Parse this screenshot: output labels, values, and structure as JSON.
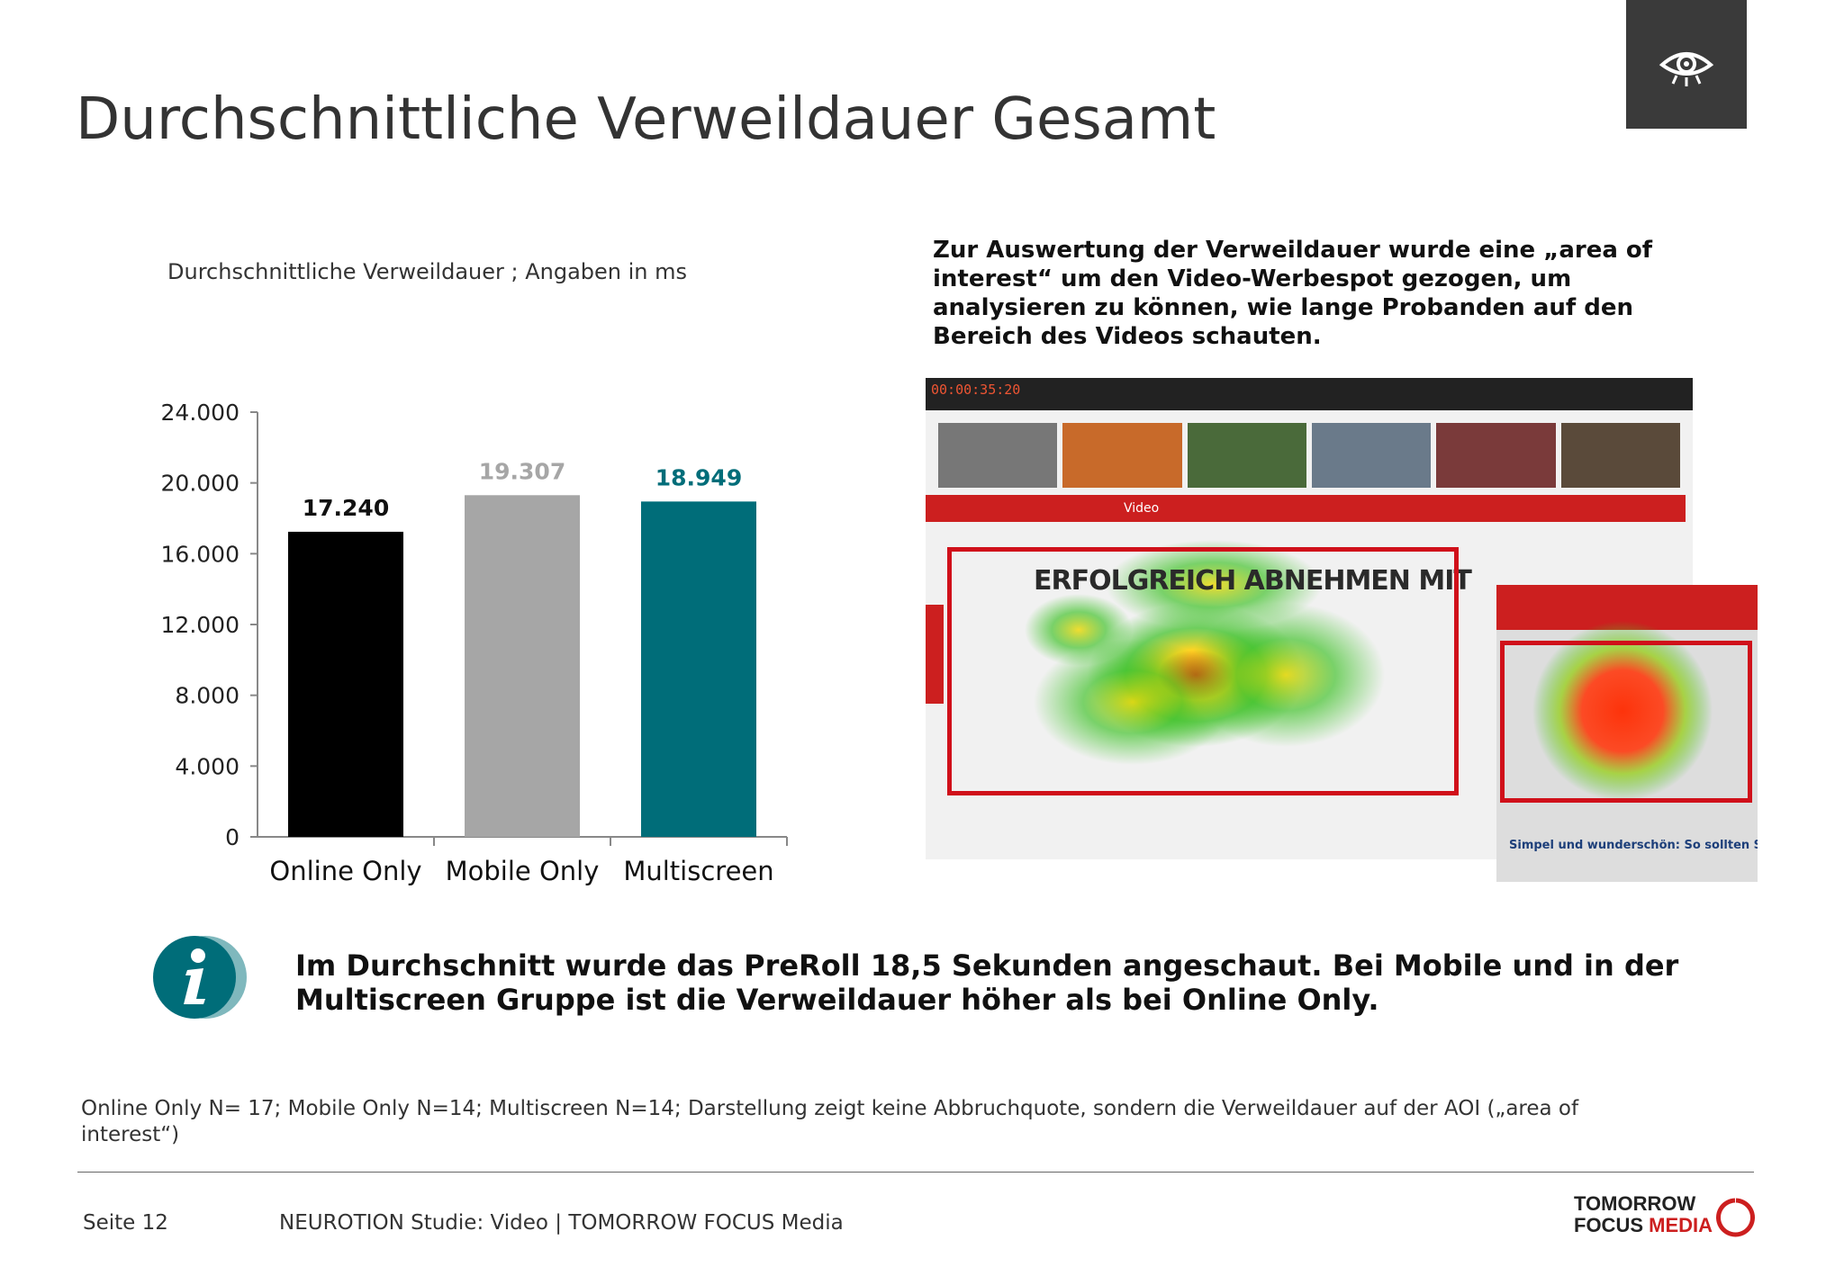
{
  "title": "Durchschnittliche Verweildauer Gesamt",
  "icons": {
    "header": "eye-icon",
    "info": "info-icon"
  },
  "chart_data": {
    "type": "bar",
    "subtitle": "Durchschnittliche Verweildauer ; Angaben in ms",
    "categories": [
      "Online Only",
      "Mobile Only",
      "Multiscreen"
    ],
    "values": [
      17240,
      19307,
      18949
    ],
    "value_labels": [
      "17.240",
      "19.307",
      "18.949"
    ],
    "bar_colors": [
      "#000000",
      "#a6a6a6",
      "#006d79"
    ],
    "label_colors": [
      "#111111",
      "#a6a6a6",
      "#006d79"
    ],
    "ylim": [
      0,
      24000
    ],
    "yticks": [
      0,
      4000,
      8000,
      12000,
      16000,
      20000,
      24000
    ],
    "ytick_labels": [
      "0",
      "4.000",
      "8.000",
      "12.000",
      "16.000",
      "20.000",
      "24.000"
    ],
    "grid": false,
    "legend": "none"
  },
  "side_text": "Zur Auswertung der Verweildauer wurde eine „area of interest“ um den Video-Werbespot gezogen, um analysieren zu können, wie lange Probanden auf den Bereich des Videos schauten.",
  "screenshot": {
    "timecode": "00:00:35:20",
    "nav_label": "Video",
    "video_headline": "ERFOLGREICH ABNEHMEN MIT",
    "mobile_caption": "Simpel und wunderschön: So sollten Sie eine Mango in Zukunft"
  },
  "info_text": "Im Durchschnitt wurde das PreRoll 18,5 Sekunden angeschaut. Bei Mobile und in der Multiscreen Gruppe ist die Verweildauer höher als bei Online Only.",
  "footnote": "Online Only N= 17; Mobile Only N=14; Multiscreen N=14; Darstellung zeigt keine Abbruchquote, sondern die Verweildauer auf der AOI („area of interest“)",
  "footer": {
    "page": "Seite 12",
    "study": "NEUROTION Studie: Video | TOMORROW FOCUS Media",
    "logo_line1": "TOMORROW",
    "logo_line2a": "FOCUS",
    "logo_line2b": "MEDIA"
  },
  "colors": {
    "accent": "#006d79",
    "brand_red": "#cc1f1f",
    "header_box": "#3a3a3a"
  }
}
